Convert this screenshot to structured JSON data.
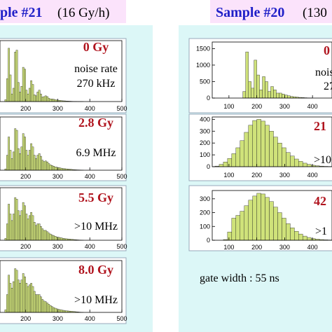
{
  "header_left": {
    "sample": "ple #21",
    "rate": "(16 Gy/h)"
  },
  "header_right": {
    "sample": "Sample #20",
    "rate": "(130"
  },
  "note": "gate width : 55 ns",
  "chart_data": [
    {
      "type": "histogram",
      "color": "#cfe27a",
      "xlim": [
        120,
        500
      ],
      "ylim": [
        0,
        1600
      ],
      "xticks": [
        200,
        300,
        400,
        500
      ],
      "bins": [
        130,
        135,
        140,
        145,
        150,
        155,
        160,
        165,
        170,
        175,
        180,
        185,
        190,
        195,
        200,
        205,
        210,
        215,
        220,
        225,
        230,
        235,
        240,
        245,
        250,
        255,
        260,
        265,
        270,
        275,
        280,
        285,
        290,
        295,
        300,
        305,
        310,
        315,
        320,
        325,
        330,
        335,
        340,
        345,
        350,
        355,
        360,
        365,
        370,
        375,
        380
      ],
      "values": [
        0,
        50,
        600,
        1400,
        700,
        200,
        350,
        1300,
        1350,
        500,
        250,
        400,
        900,
        850,
        300,
        200,
        350,
        550,
        450,
        180,
        150,
        250,
        300,
        200,
        120,
        130,
        150,
        130,
        90,
        70,
        70,
        60,
        50,
        40,
        35,
        30,
        25,
        20,
        18,
        15,
        12,
        10,
        8,
        6,
        5,
        4,
        3,
        2,
        2,
        1
      ],
      "annotations": [
        "0 Gy",
        "noise rate",
        "270 kHz"
      ]
    },
    {
      "type": "histogram",
      "color": "#cfe27a",
      "xlim": [
        120,
        500
      ],
      "ylim": [
        0,
        1600
      ],
      "xticks": [
        200,
        300,
        400,
        500
      ],
      "bins": [
        130,
        135,
        140,
        145,
        150,
        155,
        160,
        165,
        170,
        175,
        180,
        185,
        190,
        195,
        200,
        205,
        210,
        215,
        220,
        225,
        230,
        235,
        240,
        245,
        250,
        255,
        260,
        265,
        270,
        275,
        280,
        285,
        290,
        295,
        300,
        305,
        310,
        315,
        320,
        325,
        330,
        335,
        340,
        345,
        350,
        355,
        360,
        365,
        370,
        375,
        380
      ],
      "values": [
        0,
        40,
        450,
        1000,
        600,
        350,
        550,
        1250,
        1200,
        650,
        500,
        700,
        1100,
        1000,
        600,
        450,
        600,
        800,
        700,
        450,
        350,
        450,
        500,
        420,
        300,
        260,
        280,
        250,
        200,
        160,
        140,
        120,
        100,
        90,
        80,
        70,
        60,
        50,
        45,
        40,
        35,
        30,
        25,
        20,
        16,
        12,
        10,
        8,
        5,
        3
      ],
      "annotations": [
        "2.8 Gy",
        "6.9 MHz"
      ]
    },
    {
      "type": "histogram",
      "color": "#cfe27a",
      "xlim": [
        120,
        500
      ],
      "ylim": [
        0,
        1600
      ],
      "xticks": [
        200,
        300,
        400,
        500
      ],
      "bins": [
        130,
        135,
        140,
        145,
        150,
        155,
        160,
        165,
        170,
        175,
        180,
        185,
        190,
        195,
        200,
        205,
        210,
        215,
        220,
        225,
        230,
        235,
        240,
        245,
        250,
        255,
        260,
        265,
        270,
        275,
        280,
        285,
        290,
        295,
        300,
        305,
        310,
        315,
        320,
        325,
        330,
        335,
        340,
        345,
        350,
        355,
        360,
        365,
        370,
        375,
        380
      ],
      "values": [
        0,
        60,
        500,
        1100,
        800,
        600,
        800,
        1300,
        1250,
        900,
        750,
        900,
        1150,
        1050,
        800,
        650,
        750,
        850,
        750,
        550,
        450,
        500,
        500,
        420,
        350,
        300,
        300,
        260,
        220,
        190,
        160,
        140,
        120,
        100,
        90,
        80,
        70,
        60,
        50,
        45,
        40,
        35,
        30,
        25,
        20,
        15,
        12,
        8,
        5,
        3
      ],
      "annotations": [
        "5.5 Gy",
        ">10 MHz"
      ]
    },
    {
      "type": "histogram",
      "color": "#cfe27a",
      "xlim": [
        120,
        500
      ],
      "ylim": [
        0,
        1600
      ],
      "xticks": [
        200,
        300,
        400,
        500
      ],
      "bins": [
        130,
        135,
        140,
        145,
        150,
        155,
        160,
        165,
        170,
        175,
        180,
        185,
        190,
        195,
        200,
        205,
        210,
        215,
        220,
        225,
        230,
        235,
        240,
        245,
        250,
        255,
        260,
        265,
        270,
        275,
        280,
        285,
        290,
        295,
        300,
        305,
        310,
        315,
        320,
        325,
        330,
        335,
        340,
        345,
        350,
        355,
        360,
        365,
        370,
        375,
        380
      ],
      "values": [
        0,
        80,
        550,
        1150,
        900,
        750,
        950,
        1350,
        1300,
        1000,
        900,
        1000,
        1200,
        1100,
        900,
        800,
        850,
        900,
        800,
        650,
        550,
        550,
        550,
        480,
        400,
        350,
        330,
        290,
        250,
        210,
        180,
        150,
        130,
        110,
        95,
        85,
        75,
        65,
        55,
        50,
        45,
        40,
        35,
        30,
        25,
        20,
        15,
        10,
        6,
        3
      ],
      "annotations": [
        "8.0 Gy",
        ">10 MHz"
      ]
    },
    {
      "type": "histogram",
      "color": "#cfe27a",
      "xlim": [
        40,
        470
      ],
      "ylim": [
        0,
        1700
      ],
      "xticks": [
        100,
        200,
        300,
        400
      ],
      "yticks": [
        0,
        500,
        1000,
        1500
      ],
      "bins": [
        140,
        150,
        160,
        170,
        180,
        190,
        200,
        210,
        220,
        230,
        240,
        250,
        260,
        270,
        280,
        290,
        300,
        310,
        320,
        330,
        340,
        350,
        360,
        370,
        380,
        390,
        400
      ],
      "values": [
        0,
        200,
        1400,
        500,
        300,
        1150,
        700,
        250,
        650,
        500,
        200,
        350,
        250,
        150,
        150,
        120,
        90,
        70,
        50,
        40,
        30,
        20,
        15,
        10,
        5,
        2
      ],
      "annotations": [
        "0",
        "nois",
        "27"
      ]
    },
    {
      "type": "histogram",
      "color": "#cfe27a",
      "xlim": [
        40,
        470
      ],
      "ylim": [
        0,
        420
      ],
      "xticks": [
        100,
        200,
        300,
        400
      ],
      "yticks": [
        0,
        100,
        200,
        300,
        400
      ],
      "bins": [
        50,
        65,
        80,
        95,
        110,
        125,
        140,
        155,
        170,
        185,
        200,
        215,
        230,
        245,
        260,
        275,
        290,
        305,
        320,
        335,
        350,
        365,
        380,
        395,
        410,
        425,
        440,
        455,
        470
      ],
      "values": [
        5,
        20,
        40,
        70,
        110,
        160,
        220,
        290,
        350,
        390,
        400,
        385,
        350,
        300,
        250,
        200,
        160,
        120,
        90,
        65,
        45,
        30,
        20,
        12,
        8,
        5,
        3,
        2
      ],
      "annotations": [
        "21",
        ">10"
      ]
    },
    {
      "type": "histogram",
      "color": "#cfe27a",
      "xlim": [
        40,
        470
      ],
      "ylim": [
        0,
        360
      ],
      "xticks": [
        100,
        200,
        300,
        400
      ],
      "yticks": [
        0,
        100,
        200,
        300
      ],
      "bins": [
        50,
        65,
        80,
        95,
        110,
        125,
        140,
        155,
        170,
        185,
        200,
        215,
        230,
        245,
        260,
        275,
        290,
        305,
        320,
        335,
        350,
        365,
        380,
        395,
        410,
        425,
        440,
        455,
        470
      ],
      "values": [
        0,
        0,
        5,
        60,
        160,
        180,
        210,
        250,
        290,
        320,
        340,
        335,
        310,
        280,
        240,
        200,
        160,
        120,
        90,
        65,
        45,
        30,
        20,
        12,
        8,
        5,
        3,
        2
      ],
      "annotations": [
        "42",
        ">1"
      ]
    }
  ]
}
